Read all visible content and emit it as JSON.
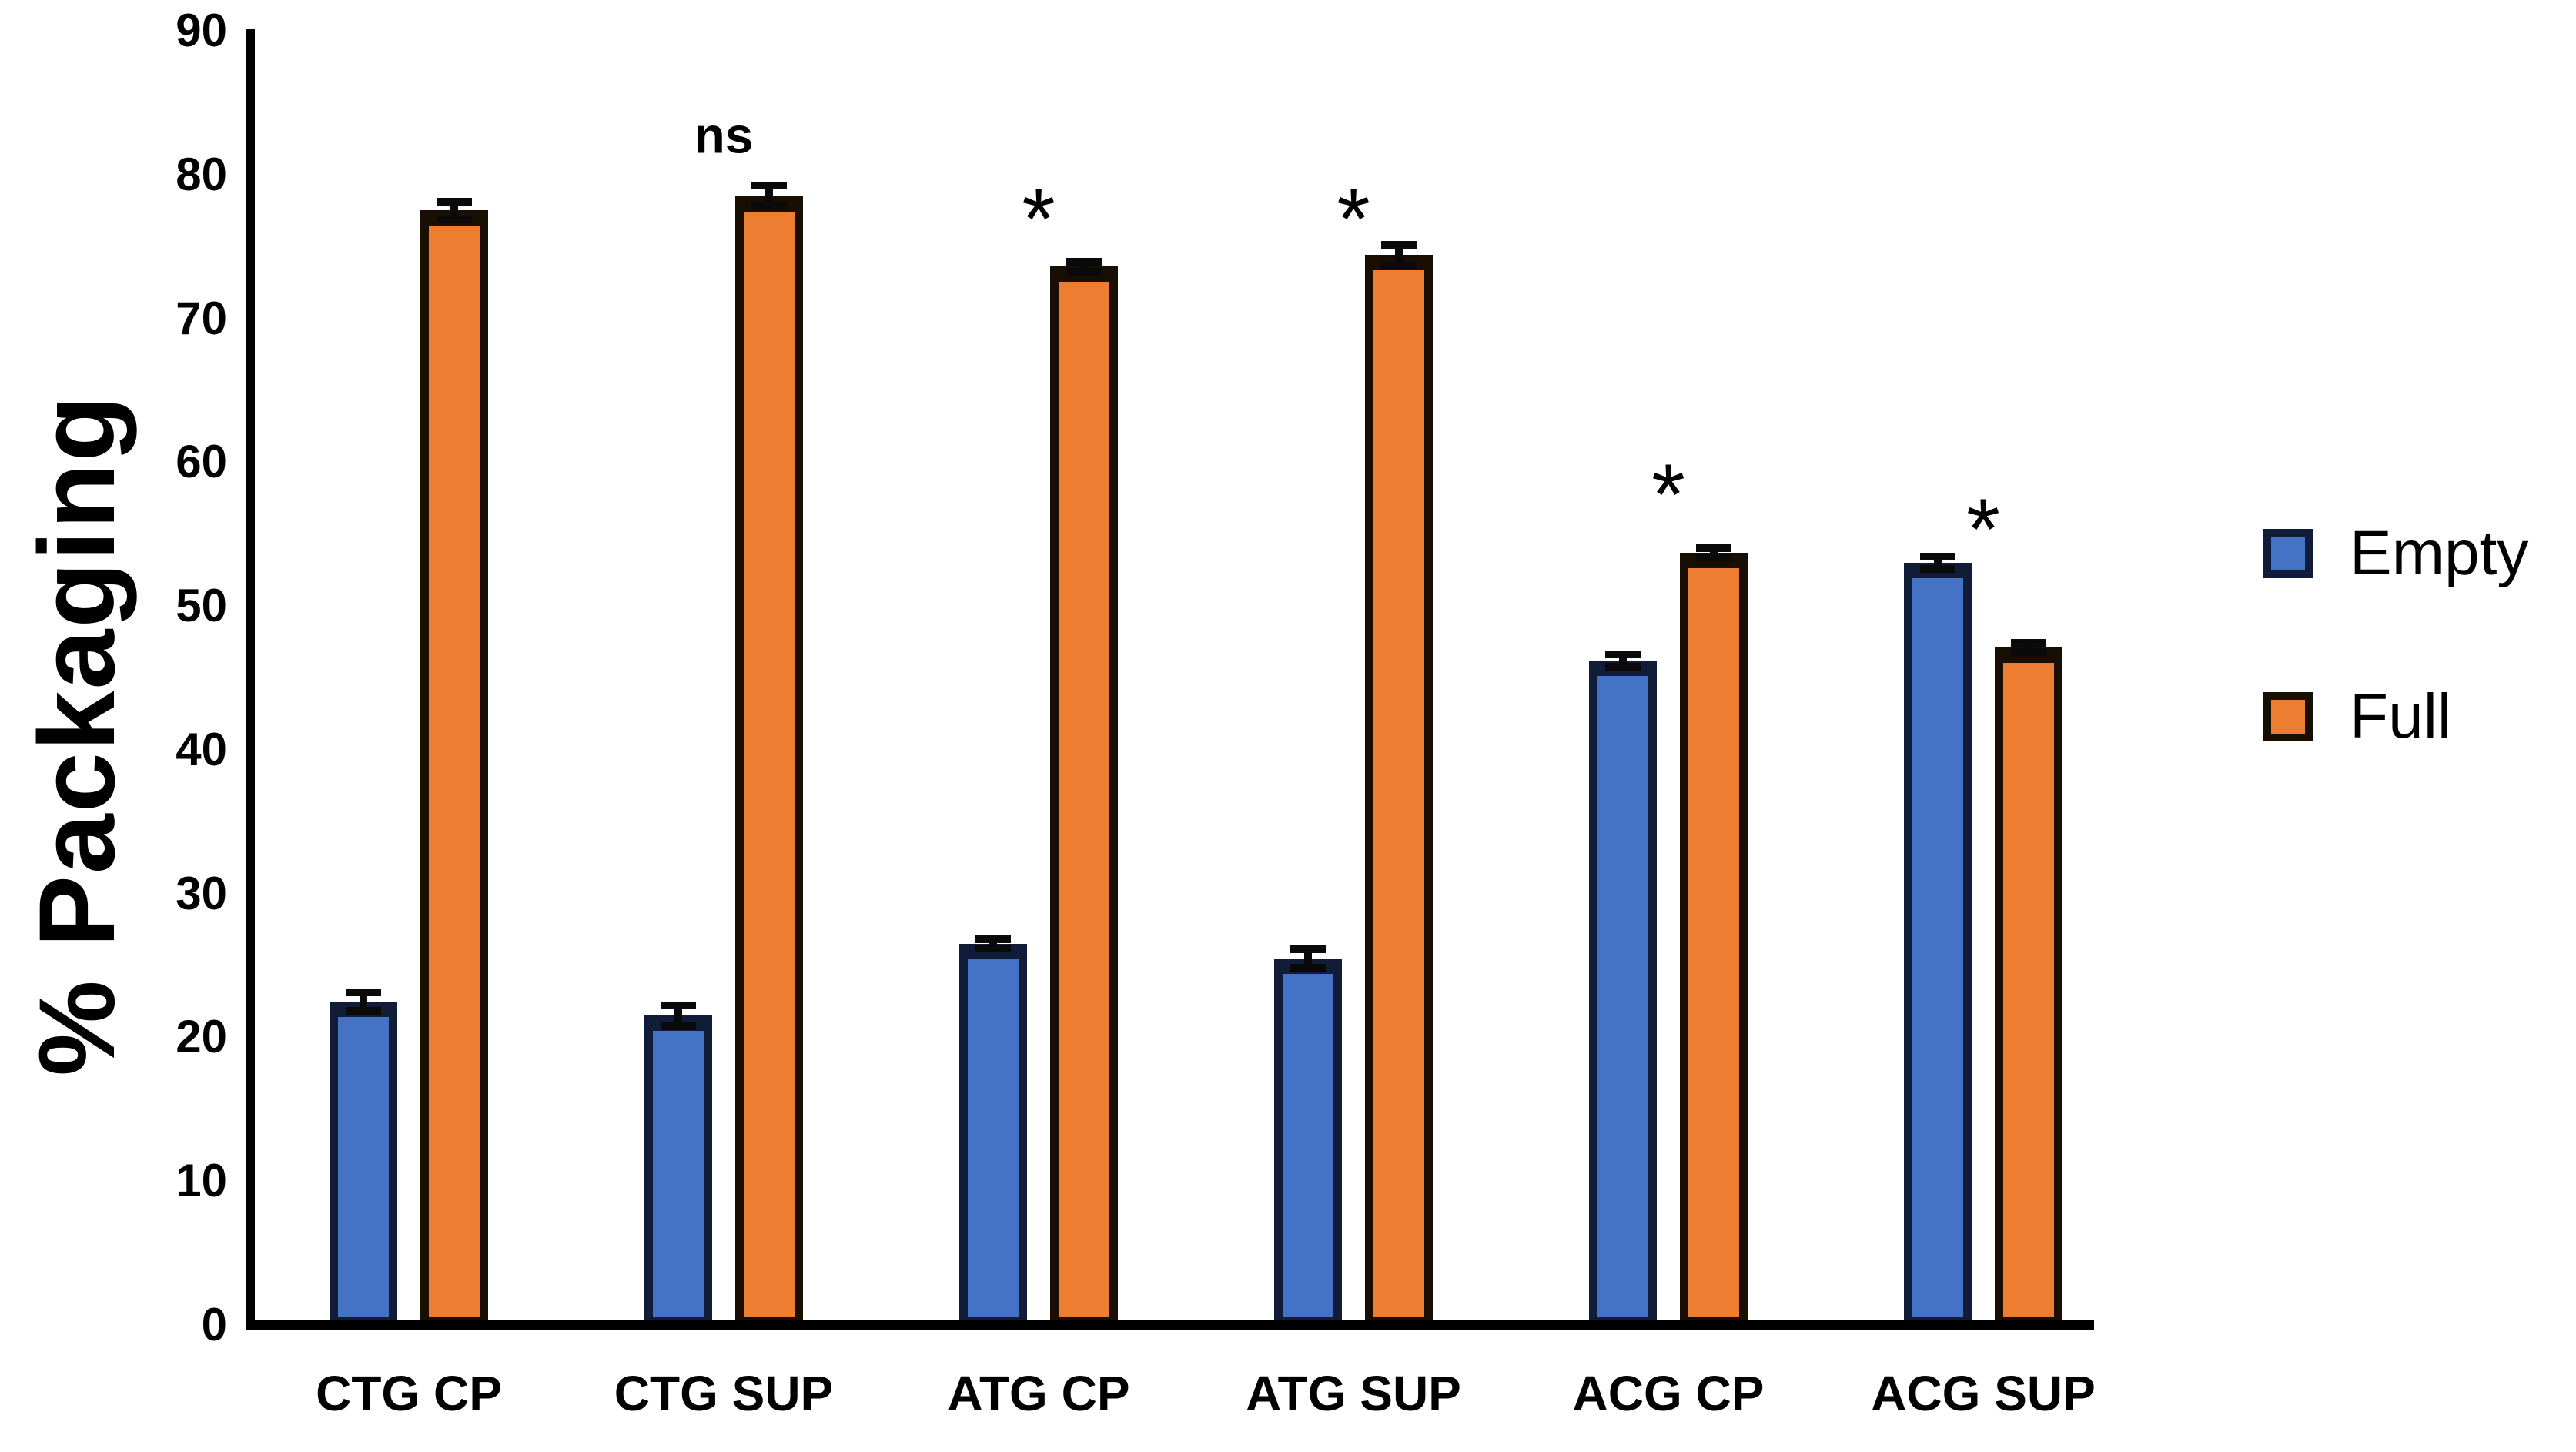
{
  "chart_data": {
    "type": "bar",
    "title": "",
    "ylabel": "% Packaging",
    "xlabel": "",
    "categories": [
      "CTG CP",
      "CTG SUP",
      "ATG CP",
      "ATG SUP",
      "ACG CP",
      "ACG SUP"
    ],
    "series": [
      {
        "name": "Empty",
        "color": "#4472C4",
        "border_color": "#101c38",
        "values": [
          22.5,
          21.5,
          26.5,
          25.5,
          46.2,
          53.0
        ],
        "errors": [
          0.9,
          1.0,
          0.6,
          0.9,
          0.7,
          0.7
        ]
      },
      {
        "name": "Full",
        "color": "#ED7D31",
        "border_color": "#190e02",
        "values": [
          77.5,
          78.5,
          73.6,
          74.4,
          53.7,
          47.1
        ],
        "errors": [
          0.9,
          1.0,
          0.6,
          1.0,
          0.6,
          0.6
        ]
      }
    ],
    "annotations": [
      {
        "category": "CTG SUP",
        "text": "ns",
        "y_value": 82.6
      },
      {
        "category": "ATG CP",
        "text": "*",
        "y_value": 77.8
      },
      {
        "category": "ATG SUP",
        "text": "*",
        "y_value": 77.8
      },
      {
        "category": "ACG CP",
        "text": "*",
        "y_value": 58.6
      },
      {
        "category": "ACG SUP",
        "text": "*",
        "y_value": 56.2
      }
    ],
    "yticks": [
      0,
      10,
      20,
      30,
      40,
      50,
      60,
      70,
      80,
      90
    ],
    "ylim": [
      0,
      90
    ],
    "grid": false,
    "legend_position": "right",
    "legend": [
      {
        "label": "Empty",
        "color": "#4472C4"
      },
      {
        "label": "Full",
        "color": "#ED7D31"
      }
    ]
  }
}
